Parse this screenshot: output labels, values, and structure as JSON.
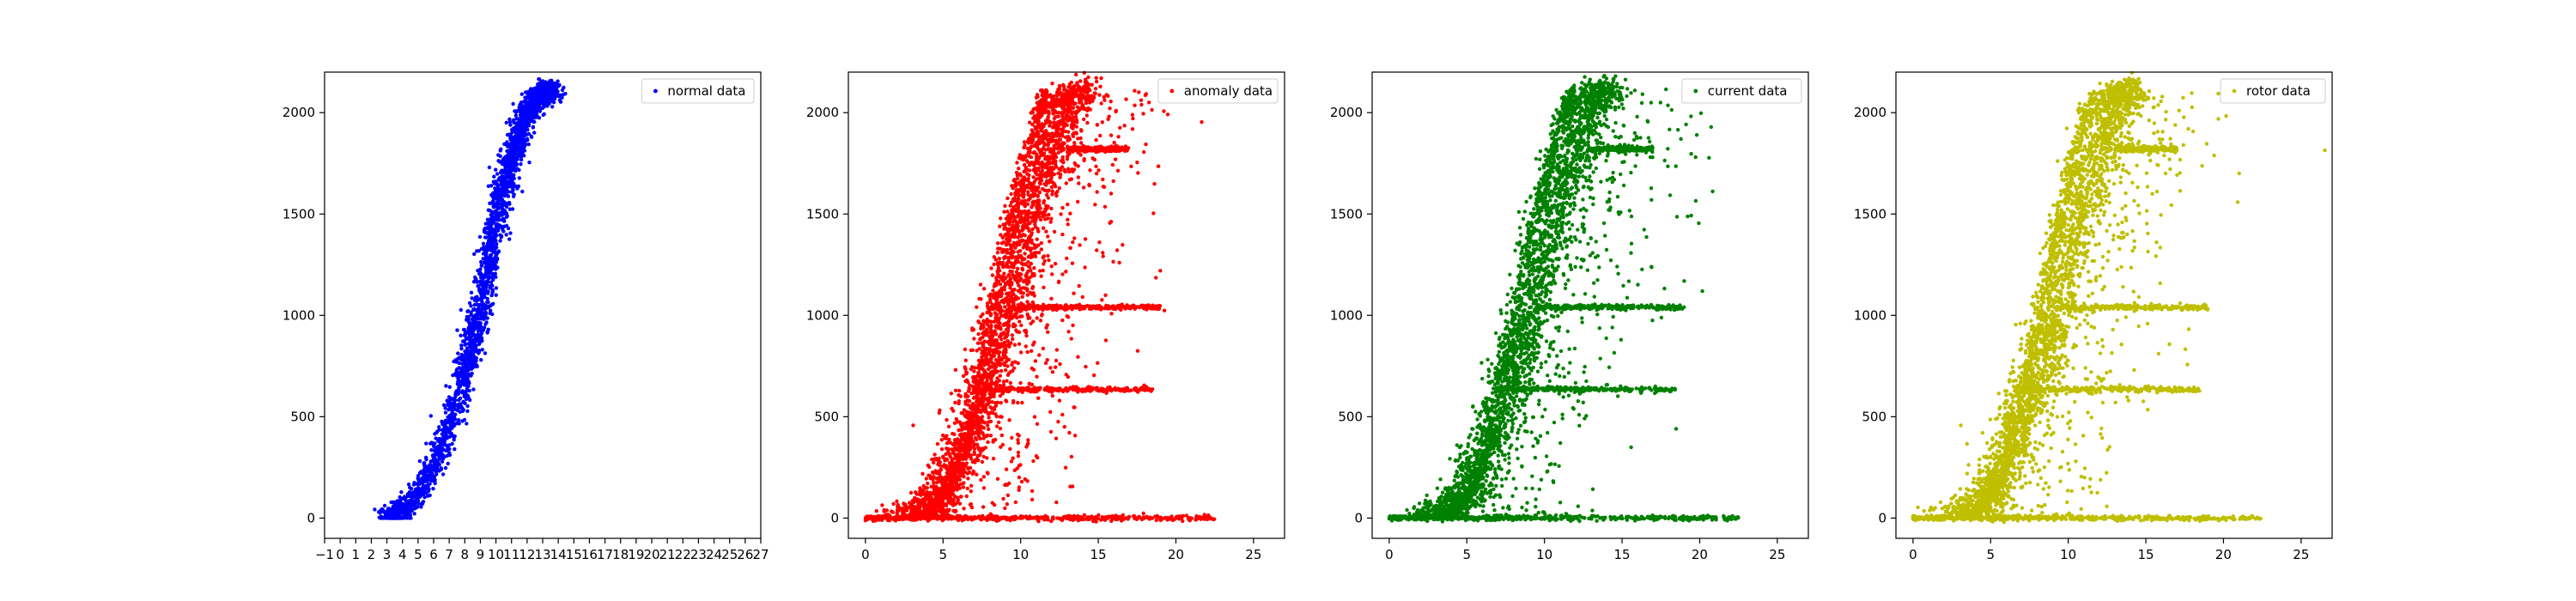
{
  "chart_data": [
    {
      "type": "scatter",
      "legend": "normal data",
      "legend_position": "top-right",
      "color": "#0000ff",
      "xlim": [
        -1,
        27
      ],
      "ylim": [
        -100,
        2200
      ],
      "xticks": [
        -1,
        0,
        1,
        2,
        3,
        4,
        5,
        6,
        7,
        8,
        9,
        10,
        11,
        12,
        13,
        14,
        15,
        16,
        17,
        18,
        19,
        20,
        21,
        22,
        23,
        24,
        25,
        26,
        27
      ],
      "yticks": [
        0,
        500,
        1000,
        1500,
        2000
      ],
      "grid": false,
      "curve": [
        [
          3.0,
          0
        ],
        [
          3.5,
          10
        ],
        [
          4,
          40
        ],
        [
          5,
          120
        ],
        [
          6,
          260
        ],
        [
          7,
          450
        ],
        [
          8,
          700
        ],
        [
          8.5,
          870
        ],
        [
          9,
          1050
        ],
        [
          9.5,
          1250
        ],
        [
          10,
          1450
        ],
        [
          10.5,
          1620
        ],
        [
          11,
          1780
        ],
        [
          11.5,
          1900
        ],
        [
          12,
          1990
        ],
        [
          12.5,
          2060
        ],
        [
          13,
          2100
        ],
        [
          13.8,
          2120
        ]
      ],
      "spread_x": 0.35
    },
    {
      "type": "scatter",
      "legend": "anomaly data",
      "legend_position": "top-right",
      "color": "#ff0000",
      "xlim": [
        -1.1,
        27
      ],
      "ylim": [
        -100,
        2200
      ],
      "xticks": [
        0,
        5,
        10,
        15,
        20,
        25
      ],
      "yticks": [
        0,
        500,
        1000,
        1500,
        2000
      ],
      "grid": false,
      "main_curve": [
        [
          2,
          0
        ],
        [
          4,
          40
        ],
        [
          5,
          130
        ],
        [
          6,
          300
        ],
        [
          7,
          500
        ],
        [
          8,
          750
        ],
        [
          9,
          1000
        ],
        [
          10,
          1300
        ],
        [
          11,
          1600
        ],
        [
          12,
          1850
        ],
        [
          13,
          2050
        ],
        [
          14,
          2130
        ]
      ],
      "steep_curve": [
        [
          3.5,
          0
        ],
        [
          5,
          100
        ],
        [
          6,
          250
        ],
        [
          7,
          550
        ],
        [
          8,
          950
        ],
        [
          9,
          1350
        ],
        [
          10,
          1650
        ],
        [
          11,
          1950
        ],
        [
          11.8,
          2100
        ]
      ],
      "bands": [
        {
          "y": 0,
          "x_from": 0,
          "x_to": 22.5
        },
        {
          "y": 635,
          "x_from": 7,
          "x_to": 18.5
        },
        {
          "y": 1040,
          "x_from": 9.5,
          "x_to": 19
        },
        {
          "y": 1820,
          "x_from": 13,
          "x_to": 17
        }
      ]
    },
    {
      "type": "scatter",
      "legend": "current data",
      "legend_position": "top-right",
      "color": "#008000",
      "xlim": [
        -1.1,
        27
      ],
      "ylim": [
        -100,
        2200
      ],
      "xticks": [
        0,
        5,
        10,
        15,
        20,
        25
      ],
      "yticks": [
        0,
        500,
        1000,
        1500,
        2000
      ],
      "grid": false,
      "main_curve": [
        [
          2,
          0
        ],
        [
          4,
          40
        ],
        [
          5,
          130
        ],
        [
          6,
          300
        ],
        [
          7,
          500
        ],
        [
          8,
          750
        ],
        [
          9,
          1000
        ],
        [
          10,
          1300
        ],
        [
          11,
          1600
        ],
        [
          12,
          1850
        ],
        [
          13,
          2050
        ],
        [
          14,
          2130
        ]
      ],
      "steep_curve": [
        [
          3.5,
          0
        ],
        [
          5,
          100
        ],
        [
          6,
          250
        ],
        [
          7,
          550
        ],
        [
          8,
          950
        ],
        [
          9,
          1350
        ],
        [
          10,
          1650
        ],
        [
          11,
          1950
        ],
        [
          11.8,
          2100
        ]
      ],
      "bands": [
        {
          "y": 0,
          "x_from": 0,
          "x_to": 22.5
        },
        {
          "y": 635,
          "x_from": 7,
          "x_to": 18.5
        },
        {
          "y": 1040,
          "x_from": 9.5,
          "x_to": 19
        },
        {
          "y": 1820,
          "x_from": 13,
          "x_to": 17
        }
      ]
    },
    {
      "type": "scatter",
      "legend": "rotor data",
      "legend_position": "top-right",
      "color": "#bfbf00",
      "xlim": [
        -1.1,
        27
      ],
      "ylim": [
        -100,
        2200
      ],
      "xticks": [
        0,
        5,
        10,
        15,
        20,
        25
      ],
      "yticks": [
        0,
        500,
        1000,
        1500,
        2000
      ],
      "grid": false,
      "main_curve": [
        [
          2,
          0
        ],
        [
          4,
          40
        ],
        [
          5,
          130
        ],
        [
          6,
          300
        ],
        [
          7,
          500
        ],
        [
          8,
          750
        ],
        [
          9,
          1000
        ],
        [
          10,
          1300
        ],
        [
          11,
          1600
        ],
        [
          12,
          1850
        ],
        [
          13,
          2050
        ],
        [
          14,
          2130
        ]
      ],
      "steep_curve": [
        [
          3.5,
          0
        ],
        [
          5,
          100
        ],
        [
          6,
          250
        ],
        [
          7,
          550
        ],
        [
          8,
          950
        ],
        [
          9,
          1350
        ],
        [
          10,
          1650
        ],
        [
          11,
          1950
        ],
        [
          11.8,
          2100
        ]
      ],
      "bands": [
        {
          "y": 0,
          "x_from": 0,
          "x_to": 22.5
        },
        {
          "y": 635,
          "x_from": 7,
          "x_to": 18.5
        },
        {
          "y": 1040,
          "x_from": 9.5,
          "x_to": 19
        },
        {
          "y": 1820,
          "x_from": 13,
          "x_to": 17
        }
      ]
    }
  ]
}
